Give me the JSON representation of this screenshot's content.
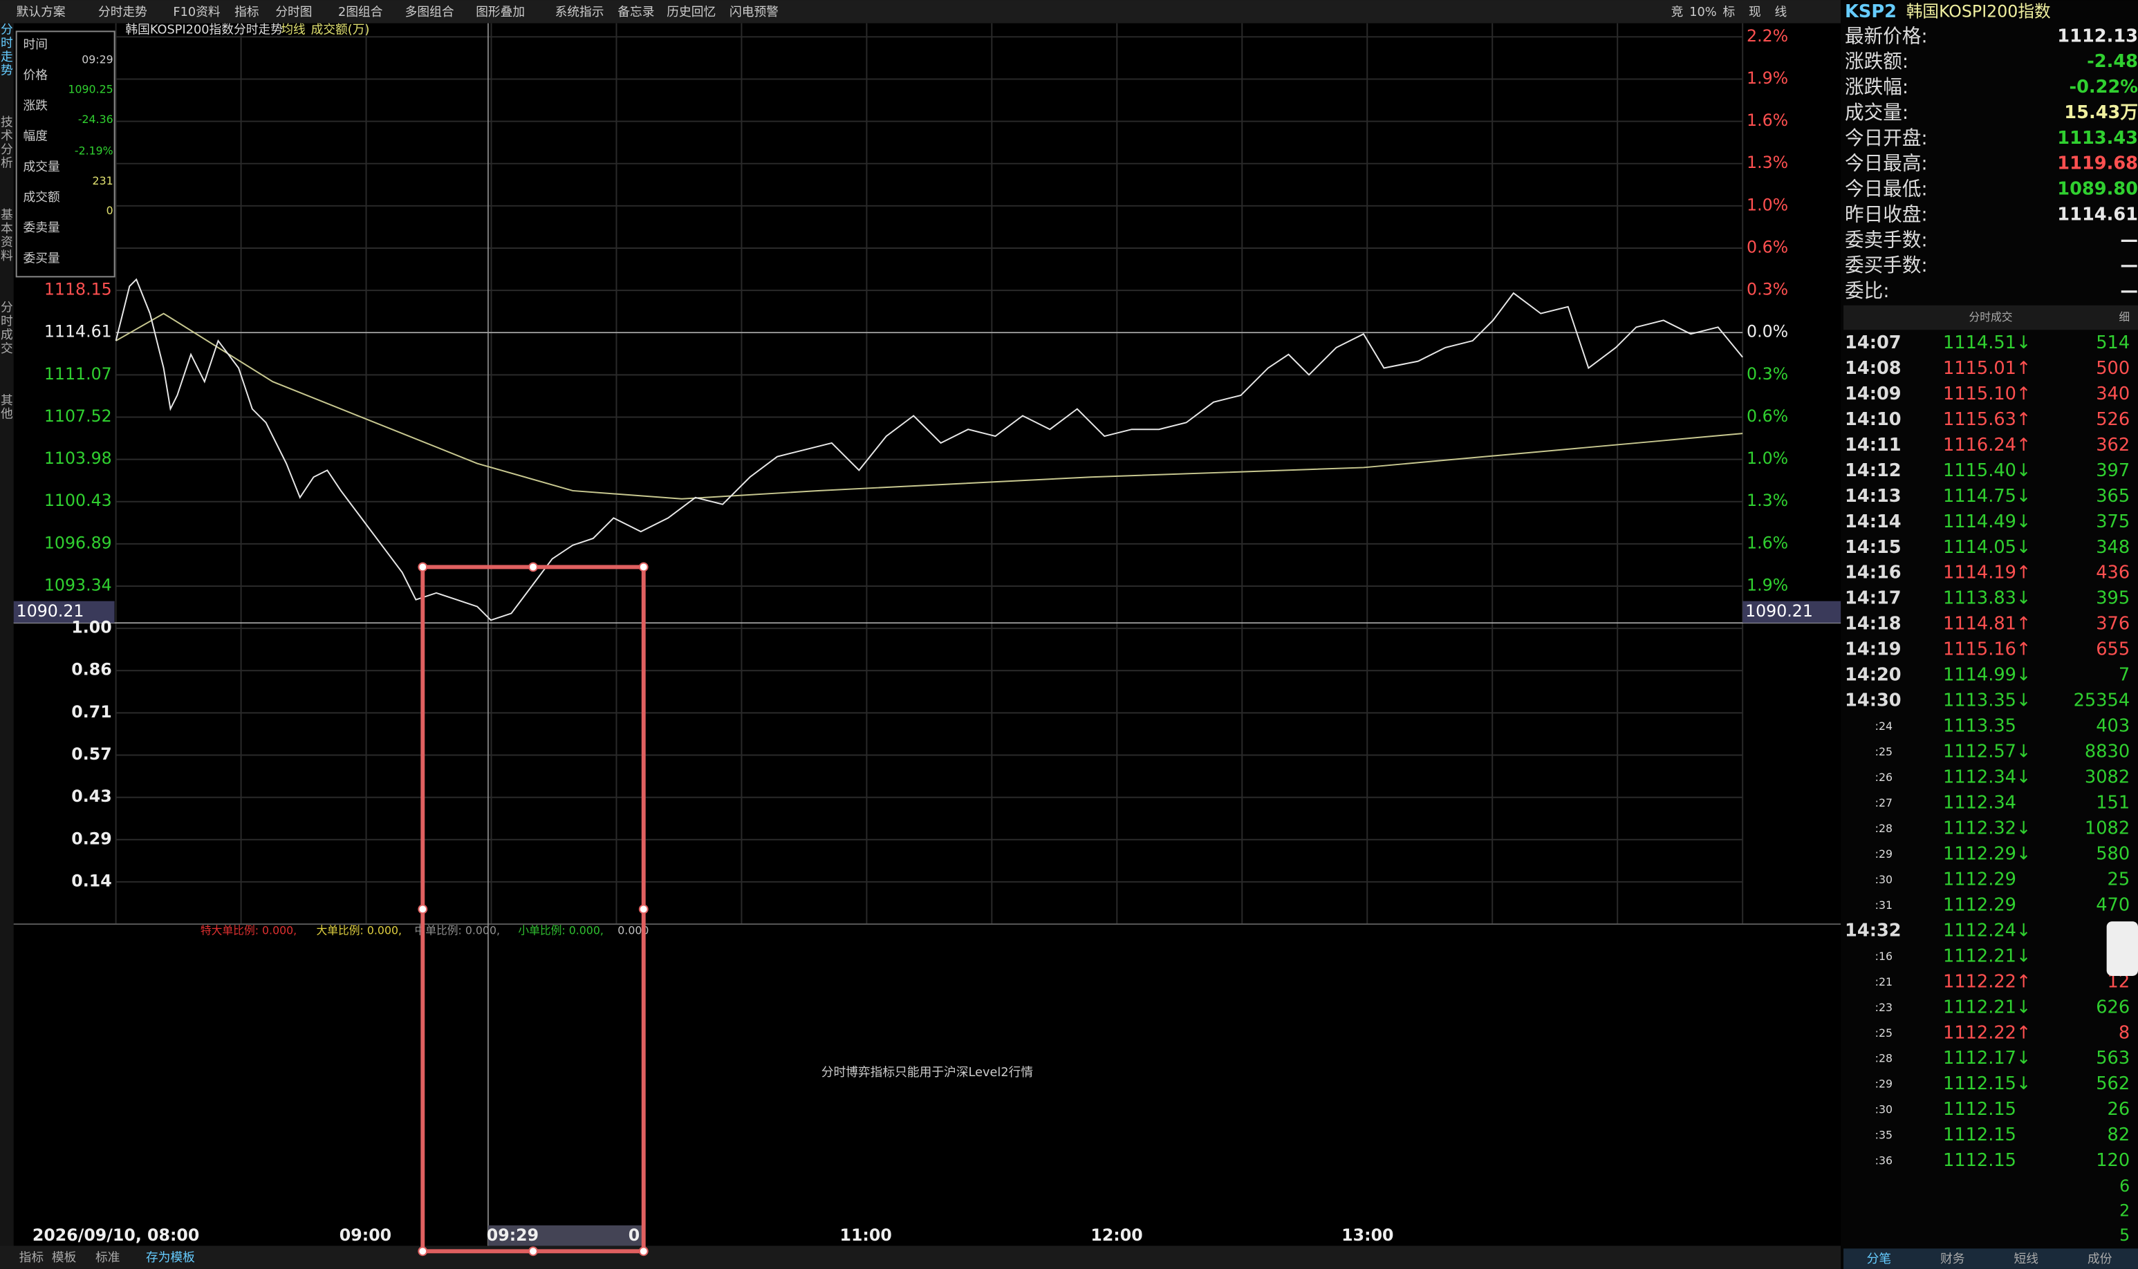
{
  "toolbar": {
    "items": [
      "默认方案",
      "分时走势",
      "F10资料",
      "指标",
      "分时图",
      "2图组合",
      "多图组合",
      "图形叠加",
      "系统指示",
      "备忘录",
      "历史回忆",
      "闪电预警"
    ],
    "right": [
      "竞",
      "10%",
      "标",
      "现",
      "线"
    ]
  },
  "chart_header": {
    "title": "韩国KOSPI200指数分时走势",
    "ma": "均线",
    "volume": "成交额(万)"
  },
  "side_tabs": [
    "分时走势",
    "技术分析",
    "基本资料",
    "分时成交",
    "其他"
  ],
  "info_box": {
    "labels": [
      "时间",
      "价格",
      "涨跌",
      "幅度",
      "成交量",
      "成交额",
      "委卖量",
      "委买量"
    ],
    "values": [
      "09:29",
      "1090.25",
      "-24.36",
      "-2.19%",
      "231",
      "0"
    ]
  },
  "price_axis": {
    "left": [
      "1118.15",
      "1114.61",
      "1111.07",
      "1107.52",
      "1103.98",
      "1100.43",
      "1096.89",
      "1093.34"
    ],
    "left_highlight": "1090.21",
    "right": [
      "2.2%",
      "1.9%",
      "1.6%",
      "1.3%",
      "1.0%",
      "0.6%",
      "0.3%",
      "0.0%",
      "0.3%",
      "0.6%",
      "1.0%",
      "1.3%",
      "1.6%",
      "1.9%"
    ],
    "right_highlight": "1090.21"
  },
  "volume_axis": [
    "1.00",
    "0.86",
    "0.71",
    "0.57",
    "0.43",
    "0.29",
    "0.14"
  ],
  "indicator": [
    {
      "text": "特大单比例: 0.000,",
      "color": "#e03030"
    },
    {
      "text": "大单比例: 0.000,",
      "color": "#e0d040"
    },
    {
      "text": "中单比例: 0.000,",
      "color": "#909090"
    },
    {
      "text": "小单比例: 0.000,",
      "color": "#30c030"
    },
    {
      "text": "0.000",
      "color": "#c0c0c0"
    }
  ],
  "message": "分时博弈指标只能用于沪深Level2行情",
  "time_axis": {
    "labels": [
      "2026/09/10, 08:00",
      "09:00",
      "09:29",
      "0",
      "11:00",
      "12:00",
      "13:00"
    ]
  },
  "bottom_tabs": [
    "指标",
    "模板",
    "标准",
    "存为模板"
  ],
  "quote": {
    "code": "KSP2",
    "name": "韩国KOSPI200指数",
    "rows": [
      {
        "label": "最新价格:",
        "value": "1112.13",
        "color": "#e8e8e8"
      },
      {
        "label": "涨跌额:",
        "value": "-2.48",
        "color": "#30d030"
      },
      {
        "label": "涨跌幅:",
        "value": "-0.22%",
        "color": "#30d030"
      },
      {
        "label": "成交量:",
        "value": "15.43万",
        "color": "#f0f0a0"
      },
      {
        "label": "今日开盘:",
        "value": "1113.43",
        "color": "#30d030"
      },
      {
        "label": "今日最高:",
        "value": "1119.68",
        "color": "#ff5050"
      },
      {
        "label": "今日最低:",
        "value": "1089.80",
        "color": "#30d030"
      },
      {
        "label": "昨日收盘:",
        "value": "1114.61",
        "color": "#e8e8e8"
      },
      {
        "label": "委卖手数:",
        "value": "—",
        "color": "#e8e8e8"
      },
      {
        "label": "委买手数:",
        "value": "—",
        "color": "#e8e8e8"
      },
      {
        "label": "委比:",
        "value": "—",
        "color": "#e8e8e8"
      }
    ]
  },
  "ticks": {
    "title": "分时成交",
    "detail": "细",
    "rows": [
      {
        "time": "14:07",
        "price": "1114.51↓",
        "vol": "514",
        "color": "#30d030"
      },
      {
        "time": "14:08",
        "price": "1115.01↑",
        "vol": "500",
        "color": "#ff5050"
      },
      {
        "time": "14:09",
        "price": "1115.10↑",
        "vol": "340",
        "color": "#ff5050"
      },
      {
        "time": "14:10",
        "price": "1115.63↑",
        "vol": "526",
        "color": "#ff5050"
      },
      {
        "time": "14:11",
        "price": "1116.24↑",
        "vol": "362",
        "color": "#ff5050"
      },
      {
        "time": "14:12",
        "price": "1115.40↓",
        "vol": "397",
        "color": "#30d030"
      },
      {
        "time": "14:13",
        "price": "1114.75↓",
        "vol": "365",
        "color": "#30d030"
      },
      {
        "time": "14:14",
        "price": "1114.49↓",
        "vol": "375",
        "color": "#30d030"
      },
      {
        "time": "14:15",
        "price": "1114.05↓",
        "vol": "348",
        "color": "#30d030"
      },
      {
        "time": "14:16",
        "price": "1114.19↑",
        "vol": "436",
        "color": "#ff5050"
      },
      {
        "time": "14:17",
        "price": "1113.83↓",
        "vol": "395",
        "color": "#30d030"
      },
      {
        "time": "14:18",
        "price": "1114.81↑",
        "vol": "376",
        "color": "#ff5050"
      },
      {
        "time": "14:19",
        "price": "1115.16↑",
        "vol": "655",
        "color": "#ff5050"
      },
      {
        "time": "14:20",
        "price": "1114.99↓",
        "vol": "7",
        "color": "#30d030"
      },
      {
        "time": "14:30",
        "price": "1113.35↓",
        "vol": "25354",
        "color": "#30d030"
      },
      {
        "time": ":24",
        "price": "1113.35",
        "vol": "403",
        "color": "#30d030"
      },
      {
        "time": ":25",
        "price": "1112.57↓",
        "vol": "8830",
        "color": "#30d030"
      },
      {
        "time": ":26",
        "price": "1112.34↓",
        "vol": "3082",
        "color": "#30d030"
      },
      {
        "time": ":27",
        "price": "1112.34",
        "vol": "151",
        "color": "#30d030"
      },
      {
        "time": ":28",
        "price": "1112.32↓",
        "vol": "1082",
        "color": "#30d030"
      },
      {
        "time": ":29",
        "price": "1112.29↓",
        "vol": "580",
        "color": "#30d030"
      },
      {
        "time": ":30",
        "price": "1112.29",
        "vol": "25",
        "color": "#30d030"
      },
      {
        "time": ":31",
        "price": "1112.29",
        "vol": "470",
        "color": "#30d030"
      },
      {
        "time": "14:32",
        "price": "1112.24↓",
        "color": "#30d030"
      },
      {
        "time": ":16",
        "price": "1112.21↓",
        "color": "#30d030"
      },
      {
        "time": ":21",
        "price": "1112.22↑",
        "vol": "12",
        "color": "#ff5050"
      },
      {
        "time": ":23",
        "price": "1112.21↓",
        "vol": "626",
        "color": "#30d030"
      },
      {
        "time": ":25",
        "price": "1112.22↑",
        "vol": "8",
        "color": "#ff5050"
      },
      {
        "time": ":28",
        "price": "1112.17↓",
        "vol": "563",
        "color": "#30d030"
      },
      {
        "time": ":29",
        "price": "1112.15↓",
        "vol": "562",
        "color": "#30d030"
      },
      {
        "time": ":30",
        "price": "1112.15",
        "vol": "26",
        "color": "#30d030"
      },
      {
        "time": ":35",
        "price": "1112.15",
        "vol": "82",
        "color": "#30d030"
      },
      {
        "time": ":36",
        "price": "1112.15",
        "vol": "120",
        "color": "#30d030"
      }
    ],
    "extra": [
      "6",
      "2",
      "5"
    ]
  },
  "right_tabs": [
    "分笔",
    "财务",
    "短线",
    "成份"
  ]
}
